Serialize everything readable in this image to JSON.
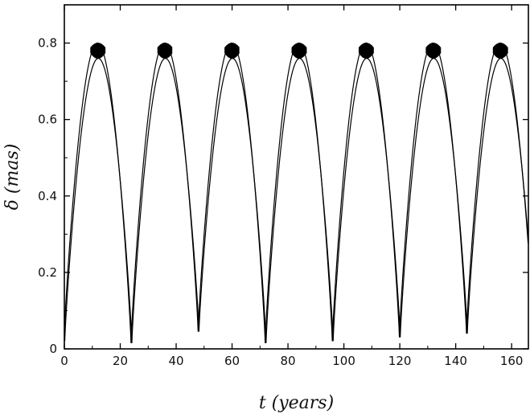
{
  "chart_data": {
    "type": "line",
    "title": "",
    "xlabel": "t (years)",
    "ylabel": "δ (mas)",
    "xlim": [
      0,
      166
    ],
    "ylim": [
      0,
      0.9
    ],
    "grid": false,
    "x_ticks": [
      0,
      20,
      40,
      60,
      80,
      100,
      120,
      140,
      160
    ],
    "x_tick_labels": [
      "0",
      "20",
      "40",
      "60",
      "80",
      "100",
      "120",
      "140",
      "160"
    ],
    "y_ticks": [
      0,
      0.2,
      0.4,
      0.6,
      0.8
    ],
    "y_tick_labels": [
      "0",
      "0.2",
      "0.4",
      "0.6",
      "0.8"
    ],
    "series": [
      {
        "period_years": 24.0,
        "peaks": [
          {
            "t": 12,
            "delta_max": 0.8,
            "delta_band_min": 0.76
          },
          {
            "t": 36,
            "delta_max": 0.8,
            "delta_band_min": 0.76
          },
          {
            "t": 60,
            "delta_max": 0.8,
            "delta_band_min": 0.76
          },
          {
            "t": 84,
            "delta_max": 0.8,
            "delta_band_min": 0.76
          },
          {
            "t": 108,
            "delta_max": 0.8,
            "delta_band_min": 0.76
          },
          {
            "t": 132,
            "delta_max": 0.8,
            "delta_band_min": 0.76
          },
          {
            "t": 156,
            "delta_max": 0.8,
            "delta_band_min": 0.76
          }
        ],
        "minima": [
          {
            "t": 0,
            "delta": 0.02
          },
          {
            "t": 24,
            "delta": 0.015
          },
          {
            "t": 48,
            "delta": 0.045
          },
          {
            "t": 72,
            "delta": 0.015
          },
          {
            "t": 96,
            "delta": 0.02
          },
          {
            "t": 120,
            "delta": 0.03
          },
          {
            "t": 144,
            "delta": 0.04
          }
        ],
        "color": "#000000"
      }
    ]
  }
}
